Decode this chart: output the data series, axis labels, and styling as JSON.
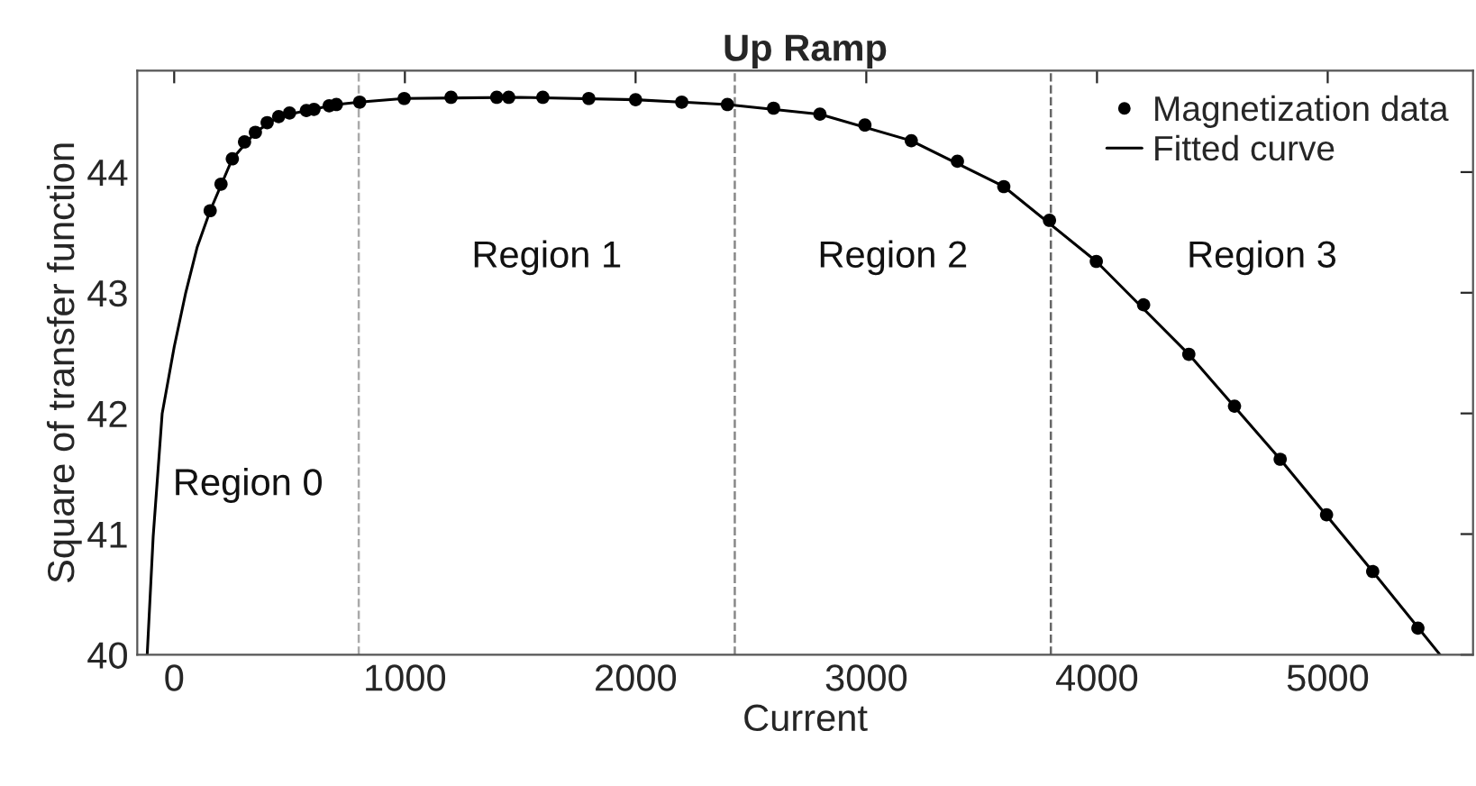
{
  "chart_data": {
    "type": "scatter",
    "title": "Up Ramp",
    "xlabel": "Current",
    "ylabel": "Square of transfer function",
    "xlim": [
      -160,
      5630
    ],
    "ylim": [
      40,
      44.84
    ],
    "xticks": [
      0,
      1000,
      2000,
      3000,
      4000,
      5000
    ],
    "yticks": [
      40,
      41,
      42,
      43,
      44
    ],
    "grid": false,
    "legend": "top right",
    "series": [
      {
        "name": "Magnetization data",
        "marker": "circle",
        "color": "#000000",
        "x": [
          156,
          203,
          252,
          305,
          352,
          403,
          453,
          500,
          573,
          606,
          672,
          703,
          804,
          997,
          1200,
          1398,
          1450,
          1598,
          1797,
          2000,
          2200,
          2398,
          2598,
          2799,
          2994,
          3195,
          3395,
          3596,
          3794,
          3997,
          4202,
          4398,
          4596,
          4794,
          4995,
          5195,
          5391
        ],
        "values": [
          43.68,
          43.9,
          44.11,
          44.25,
          44.33,
          44.41,
          44.46,
          44.49,
          44.51,
          44.52,
          44.55,
          44.56,
          44.58,
          44.61,
          44.62,
          44.62,
          44.62,
          44.62,
          44.61,
          44.6,
          44.58,
          44.56,
          44.53,
          44.48,
          44.39,
          44.26,
          44.09,
          43.88,
          43.6,
          43.26,
          42.9,
          42.49,
          42.06,
          41.62,
          41.16,
          40.69,
          40.22
        ]
      },
      {
        "name": "Fitted curve",
        "type": "line",
        "marker": "none",
        "line_style": "solid",
        "color": "#000000",
        "x": [
          -117,
          -91,
          -52,
          0,
          50,
          100,
          156,
          252,
          352,
          453,
          573,
          703,
          804,
          997,
          1500,
          2000,
          2398,
          2799,
          3195,
          3596,
          3997,
          4398,
          4794,
          5195,
          5487
        ],
        "values": [
          40,
          40.98,
          42,
          42.55,
          43,
          43.38,
          43.68,
          44.11,
          44.33,
          44.46,
          44.51,
          44.56,
          44.58,
          44.61,
          44.62,
          44.6,
          44.56,
          44.48,
          44.26,
          43.88,
          43.26,
          42.49,
          41.62,
          40.69,
          40
        ]
      }
    ],
    "ref_lines": [
      {
        "axis": "x",
        "value": 800,
        "color": "#aaaaaa",
        "line_style": "dashed"
      },
      {
        "axis": "x",
        "value": 2430,
        "color": "#888888",
        "line_style": "dashed"
      },
      {
        "axis": "x",
        "value": 3800,
        "color": "#666666",
        "line_style": "dashed"
      }
    ],
    "annotations": [
      "Region 0",
      "Region 1",
      "Region 2",
      "Region 3"
    ]
  }
}
